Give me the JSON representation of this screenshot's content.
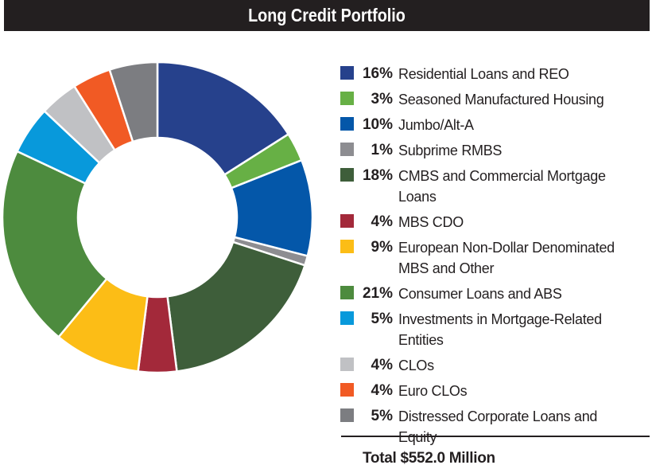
{
  "title": "Long Credit Portfolio",
  "total": "Total $552.0 Million",
  "chart_data": {
    "type": "pie",
    "donut": true,
    "title": "Long Credit Portfolio",
    "legend_position": "right",
    "series": [
      {
        "label": "Residential Loans and REO",
        "pct_label": "16%",
        "value": 16,
        "color": "#26418c"
      },
      {
        "label": "Seasoned Manufactured Housing",
        "pct_label": "3%",
        "value": 3,
        "color": "#67b045"
      },
      {
        "label": "Jumbo/Alt-A",
        "pct_label": "10%",
        "value": 10,
        "color": "#0457a9"
      },
      {
        "label": "Subprime RMBS",
        "pct_label": "1%",
        "value": 1,
        "color": "#8d8d91"
      },
      {
        "label": "CMBS and Commercial Mortgage Loans",
        "pct_label": "18%",
        "value": 18,
        "color": "#3e5e3a"
      },
      {
        "label": "MBS CDO",
        "pct_label": "4%",
        "value": 4,
        "color": "#a3293a"
      },
      {
        "label": "European Non-Dollar Denominated MBS and Other",
        "pct_label": "9%",
        "value": 9,
        "color": "#fcbd16"
      },
      {
        "label": "Consumer Loans and ABS",
        "pct_label": "21%",
        "value": 21,
        "color": "#4d8b3e"
      },
      {
        "label": "Investments in Mortgage-Related Entities",
        "pct_label": "5%",
        "value": 5,
        "color": "#0899db"
      },
      {
        "label": "CLOs",
        "pct_label": "4%",
        "value": 4,
        "color": "#c0c1c4"
      },
      {
        "label": "Euro CLOs",
        "pct_label": "4%",
        "value": 4,
        "color": "#f15a24"
      },
      {
        "label": "Distressed Corporate Loans and Equity",
        "pct_label": "5%",
        "value": 5,
        "color": "#7c7d81"
      }
    ]
  }
}
